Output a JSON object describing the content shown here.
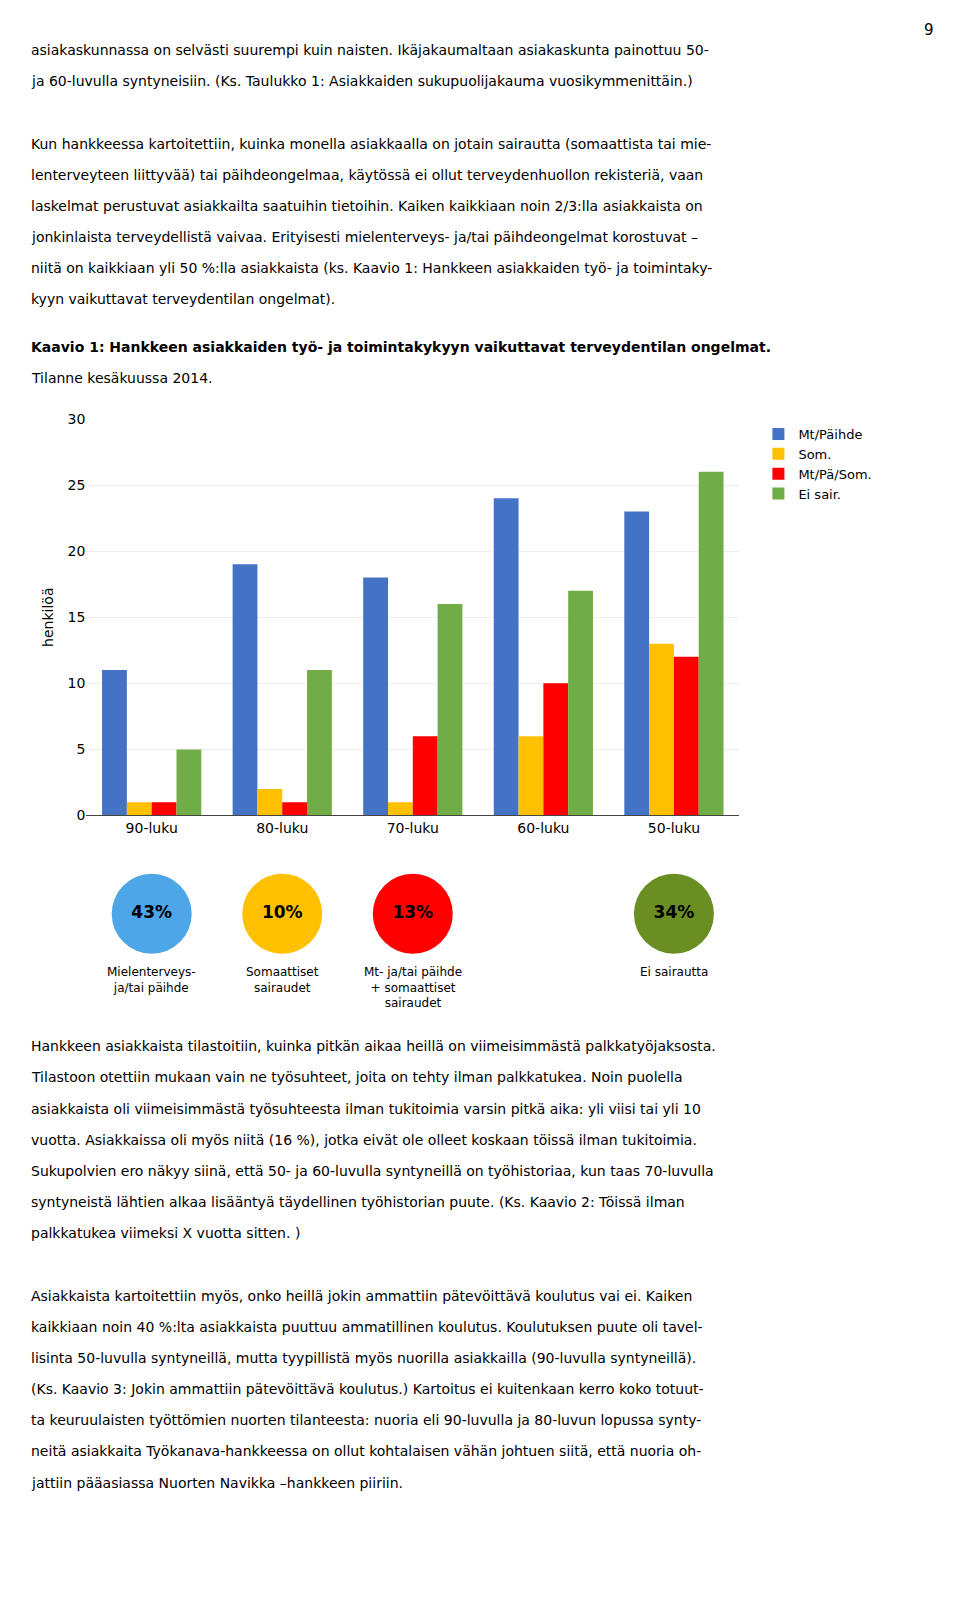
{
  "page_number": "9",
  "text_top": [
    [
      "asiakaskunnassa on selvästi suurempi kuin naisten. Ikäjakaumaltaan asiakaskunta painottuu 50-",
      "ja 60-luvulla syntyneisiin. (Ks. Taulukko 1: Asiakkaiden sukupuolijakauma vuosikymmenittäin.)"
    ],
    [
      "Kun hankkeessa kartoitettiin, kuinka monella asiakkaalla on jotain sairautta (somaattista tai mie-",
      "lenterveyteen liittyvää) tai päihdeongelmaa, käytössä ei ollut terveydenhuollon rekisteriä, vaan",
      "laskelmat perustuvat asiakkailta saatuihin tietoihin. Kaiken kaikkiaan noin 2/3:lla asiakkaista on",
      "jonkinlaista terveydellistä vaivaa. Erityisesti mielenterveys- ja/tai päihdeongelmat korostuvat –",
      "niitä on kaikkiaan yli 50 %:lla asiakkaista (ks. Kaavio 1: Hankkeen asiakkaiden työ- ja toimintaky-",
      "kyyn vaikuttavat terveydentilan ongelmat)."
    ]
  ],
  "chart_data": {
    "type": "bar",
    "title": "Kaavio 1: Hankkeen asiakkaiden työ- ja toimintakykyyn vaikuttavat terveydentilan ongelmat.",
    "subtitle": "Tilanne kesäkuussa 2014.",
    "categories": [
      "90-luku",
      "80-luku",
      "70-luku",
      "60-luku",
      "50-luku"
    ],
    "series": [
      {
        "name": "Mt/Päihde",
        "color": "#4472C4",
        "values": [
          11,
          19,
          18,
          24,
          23
        ]
      },
      {
        "name": "Som.",
        "color": "#FFC000",
        "values": [
          1,
          2,
          1,
          6,
          13
        ]
      },
      {
        "name": "Mt/Pä/Som.",
        "color": "#FF0000",
        "values": [
          1,
          1,
          6,
          10,
          12
        ]
      },
      {
        "name": "Ei sair.",
        "color": "#70AD47",
        "values": [
          5,
          11,
          16,
          17,
          26
        ]
      }
    ],
    "ylim": [
      0,
      30
    ],
    "yticks": [
      0,
      5,
      10,
      15,
      20,
      25,
      30
    ],
    "ylabel": "henkilöä",
    "grid": true,
    "legend": "right",
    "annotations": [
      {
        "text": "43%",
        "color": "#4DA6E8",
        "category": "90-luku",
        "sublabel": [
          "Mielenterveys-",
          "ja/tai päihde"
        ]
      },
      {
        "text": "10%",
        "color": "#FFC000",
        "category": "80-luku",
        "sublabel": [
          "Somaattiset",
          "sairaudet"
        ]
      },
      {
        "text": "13%",
        "color": "#FF0000",
        "category": "70-luku",
        "sublabel": [
          "Mt- ja/tai päihde",
          "+ somaattiset",
          "sairaudet"
        ]
      },
      {
        "text": "34%",
        "color": "#6B8E23",
        "category": "50-luku",
        "sublabel": [
          "Ei sairautta"
        ]
      }
    ]
  },
  "text_bottom": [
    [
      "Hankkeen asiakkaista tilastoitiin, kuinka pitkän aikaa heillä on viimeisimmästä palkkatyöjaksosta.",
      "Tilastoon otettiin mukaan vain ne työsuhteet, joita on tehty ilman palkkatukea. Noin puolella",
      "asiakkaista oli viimeisimmästä työsuhteesta ilman tukitoimia varsin pitkä aika: yli viisi tai yli 10",
      "vuotta. Asiakkaissa oli myös niitä (16 %), jotka eivät ole olleet koskaan töissä ilman tukitoimia.",
      "Sukupolvien ero näkyy siinä, että 50- ja 60-luvulla syntyneillä on työhistoriaa, kun taas 70-luvulla",
      "syntyneistä lähtien alkaa lisääntyä täydellinen työhistorian puute. (Ks. Kaavio 2: Töissä ilman",
      "palkkatukea viimeksi X vuotta sitten. )"
    ],
    [
      "Asiakkaista kartoitettiin myös, onko heillä jokin ammattiin pätevöittävä koulutus vai ei. Kaiken",
      "kaikkiaan noin 40 %:lta asiakkaista puuttuu ammatillinen koulutus. Koulutuksen puute oli tavel-",
      "lisinta 50-luvulla syntyneillä, mutta tyypillistä myös nuorilla asiakkailla (90-luvulla syntyneillä).",
      "(Ks. Kaavio 3: Jokin ammattiin pätevöittävä koulutus.) Kartoitus ei kuitenkaan kerro koko totuut-",
      "ta keuruulaisten työttömien nuorten tilanteesta: nuoria eli 90-luvulla ja 80-luvun lopussa synty-",
      "neitä asiakkaita Työkanava-hankkeessa on ollut kohtalaisen vähän johtuen siitä, että nuoria oh-",
      "jattiin pääasiassa Nuorten Navikka –hankkeen piiriin."
    ]
  ]
}
